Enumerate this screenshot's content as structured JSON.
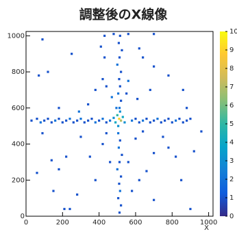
{
  "chart_data": {
    "type": "heatmap",
    "title": "調整後のX線像",
    "x_label": "X",
    "xlim": [
      0,
      1024
    ],
    "ylim": [
      0,
      1024
    ],
    "xticks": [
      0,
      200,
      400,
      600,
      800,
      1000
    ],
    "yticks": [
      0,
      200,
      400,
      600,
      800,
      1000
    ],
    "zlim": [
      0,
      10
    ],
    "zticks": [
      0,
      1,
      2,
      3,
      4,
      5,
      6,
      7,
      8,
      9,
      10
    ],
    "colorscale": [
      "#352a87",
      "#0f5cdd",
      "#1481d6",
      "#06a4ca",
      "#2eb7a4",
      "#87bf77",
      "#d1bb59",
      "#fec832",
      "#f9fb0e"
    ],
    "x": [
      30,
      60,
      80,
      100,
      120,
      140,
      160,
      180,
      200,
      220,
      240,
      260,
      280,
      300,
      320,
      340,
      360,
      380,
      400,
      420,
      440,
      460,
      580,
      600,
      620,
      640,
      660,
      680,
      700,
      720,
      740,
      760,
      780,
      800,
      820,
      840,
      860,
      880,
      900,
      512,
      520,
      505,
      515,
      510,
      520,
      500,
      512,
      525,
      508,
      515,
      505,
      512,
      520,
      505,
      515,
      510,
      520,
      500,
      512,
      525,
      508,
      515,
      500,
      510,
      520,
      490,
      530,
      505,
      480,
      540,
      515,
      495,
      120,
      70,
      90,
      250,
      340,
      290,
      300,
      220,
      140,
      150,
      210,
      240,
      280,
      380,
      350,
      420,
      430,
      410,
      420,
      440,
      380,
      620,
      640,
      700,
      680,
      610,
      780,
      860,
      880,
      750,
      780,
      820,
      700,
      660,
      620,
      580,
      700,
      850,
      900,
      920,
      960,
      600,
      640,
      440,
      460,
      560,
      560,
      470,
      550,
      180,
      60,
      90,
      180,
      560,
      480,
      700,
      430
    ],
    "y": [
      530,
      540,
      520,
      530,
      540,
      520,
      530,
      540,
      520,
      530,
      540,
      520,
      530,
      540,
      520,
      530,
      540,
      520,
      530,
      540,
      520,
      530,
      530,
      540,
      520,
      530,
      540,
      520,
      530,
      540,
      520,
      530,
      540,
      520,
      530,
      540,
      520,
      530,
      540,
      20,
      60,
      100,
      140,
      180,
      220,
      260,
      300,
      340,
      380,
      420,
      460,
      600,
      640,
      680,
      720,
      760,
      800,
      840,
      880,
      920,
      960,
      1000,
      560,
      540,
      530,
      520,
      550,
      500,
      545,
      520,
      580,
      600,
      800,
      780,
      980,
      900,
      620,
      580,
      440,
      330,
      310,
      140,
      40,
      40,
      120,
      200,
      330,
      400,
      880,
      940,
      760,
      720,
      700,
      930,
      880,
      830,
      700,
      650,
      780,
      700,
      600,
      440,
      380,
      330,
      350,
      250,
      200,
      140,
      90,
      200,
      40,
      360,
      470,
      430,
      470,
      460,
      300,
      300,
      750,
      660,
      680,
      260,
      240,
      460,
      600,
      1010,
      1010,
      1010,
      1000
    ],
    "values": [
      1,
      1,
      2,
      1,
      1,
      1,
      2,
      1,
      1,
      1,
      2,
      1,
      1,
      2,
      1,
      1,
      1,
      2,
      1,
      2,
      1,
      2,
      2,
      1,
      1,
      2,
      1,
      1,
      1,
      2,
      1,
      1,
      1,
      1,
      2,
      1,
      1,
      1,
      1,
      1,
      1,
      1,
      2,
      1,
      1,
      2,
      1,
      1,
      2,
      1,
      2,
      2,
      1,
      2,
      1,
      1,
      1,
      2,
      1,
      1,
      1,
      1,
      5,
      9,
      7,
      4,
      4,
      3,
      3,
      3,
      3,
      2,
      1,
      1,
      1,
      1,
      1,
      2,
      1,
      1,
      1,
      1,
      1,
      1,
      1,
      1,
      1,
      1,
      1,
      1,
      1,
      1,
      1,
      1,
      1,
      1,
      1,
      1,
      1,
      1,
      1,
      1,
      1,
      1,
      1,
      1,
      1,
      1,
      1,
      1,
      1,
      1,
      1,
      1,
      1,
      1,
      1,
      1,
      2,
      2,
      1,
      1,
      1,
      1,
      1,
      1,
      1,
      1,
      1
    ]
  }
}
